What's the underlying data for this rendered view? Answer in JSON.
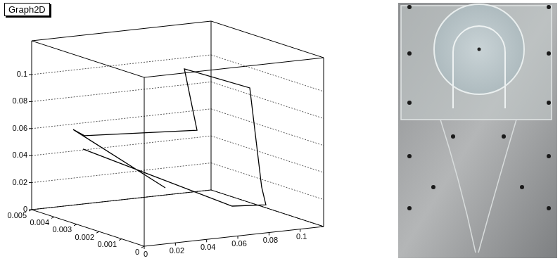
{
  "chart_data": {
    "type": "line",
    "title": "Graph2D",
    "x": [
      0.0185,
      0.0708,
      0.0852,
      0.0825,
      0.0821,
      0.0546,
      0.0627,
      0.0194,
      0.0122,
      0.0424
    ],
    "y": [
      0.004,
      0.001,
      0.0005,
      0.0005,
      0.001,
      0.002,
      0.002,
      0.004,
      0.004,
      0.002
    ],
    "z": [
      0.0479,
      0.0153,
      0.0172,
      0.0306,
      0.1014,
      0.1135,
      0.0671,
      0.0577,
      0.0632,
      0.027
    ],
    "xlim": [
      0,
      0.115
    ],
    "xticks": [
      0,
      0.02,
      0.04,
      0.06,
      0.08,
      0.1
    ],
    "ylim": [
      0,
      0.005
    ],
    "yticks": [
      0,
      0.001,
      0.002,
      0.003,
      0.004,
      0.005
    ],
    "zlim": [
      0,
      0.125
    ],
    "zticks": [
      0,
      0.02,
      0.04,
      0.06,
      0.08,
      0.1
    ],
    "color": "#000000",
    "grid": true
  }
}
